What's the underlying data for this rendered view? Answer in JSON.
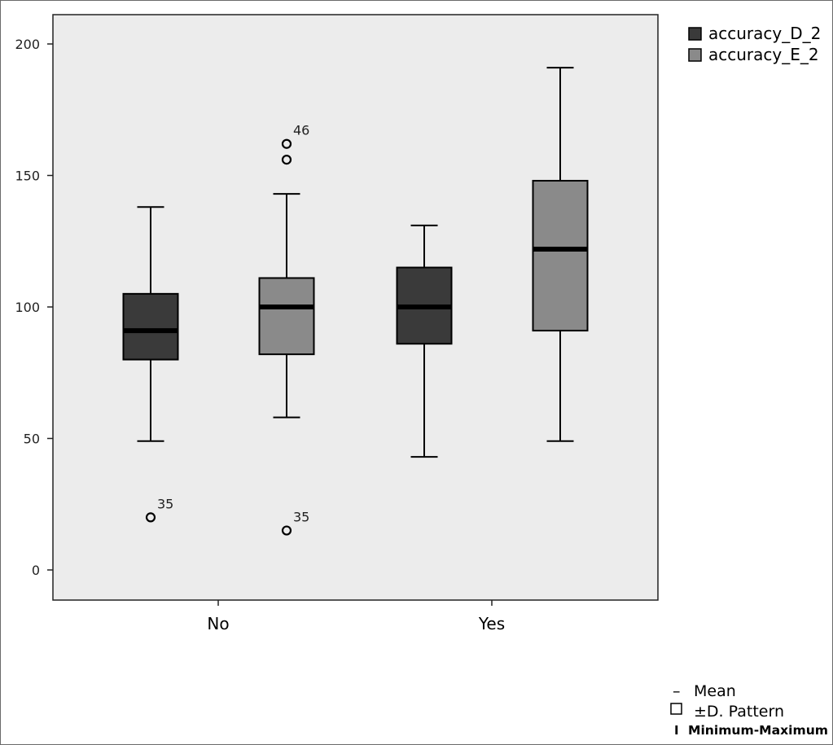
{
  "chart_data": {
    "type": "box",
    "categories": [
      "No",
      "Yes"
    ],
    "series": [
      {
        "name": "accuracy_D_2",
        "color": "#3a3a3a",
        "boxes": [
          {
            "category": "No",
            "min": 49,
            "q1": 80,
            "median": 91,
            "q3": 105,
            "max": 138,
            "outliers": [
              {
                "value": 20,
                "label": "35"
              }
            ]
          },
          {
            "category": "Yes",
            "min": 43,
            "q1": 86,
            "median": 100,
            "q3": 115,
            "max": 131,
            "outliers": []
          }
        ]
      },
      {
        "name": "accuracy_E_2",
        "color": "#8a8a8a",
        "boxes": [
          {
            "category": "No",
            "min": 58,
            "q1": 82,
            "median": 100,
            "q3": 111,
            "max": 143,
            "outliers": [
              {
                "value": 162,
                "label": "46"
              },
              {
                "value": 156,
                "label": ""
              },
              {
                "value": 15,
                "label": "35"
              }
            ]
          },
          {
            "category": "Yes",
            "min": 49,
            "q1": 91,
            "median": 122,
            "q3": 148,
            "max": 191,
            "outliers": []
          }
        ]
      }
    ],
    "yticks": [
      0,
      50,
      100,
      150,
      200
    ],
    "ylim": [
      -11,
      211
    ],
    "grid": false,
    "legend_position": "top-right",
    "plot_background": "#ececec",
    "notes": [
      {
        "symbol": "–",
        "text": "Mean"
      },
      {
        "symbol": "☐",
        "text": "±D. Pattern"
      },
      {
        "symbol": "I",
        "text": "Minimum-Maximum"
      }
    ]
  }
}
